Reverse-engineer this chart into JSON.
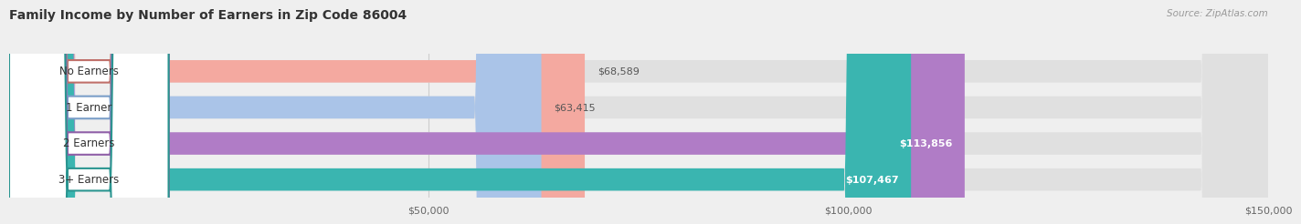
{
  "title": "Family Income by Number of Earners in Zip Code 86004",
  "source": "Source: ZipAtlas.com",
  "categories": [
    "No Earners",
    "1 Earner",
    "2 Earners",
    "3+ Earners"
  ],
  "values": [
    68589,
    63415,
    113856,
    107467
  ],
  "bar_colors": [
    "#f4a9a0",
    "#aac4e8",
    "#b07cc6",
    "#3ab5b0"
  ],
  "label_edge_colors": [
    "#c0706a",
    "#7a9ec8",
    "#9060a8",
    "#2a9590"
  ],
  "background_color": "#efefef",
  "bar_background": "#e0e0e0",
  "xlim": [
    0,
    150000
  ],
  "xticks": [
    50000,
    100000,
    150000
  ],
  "xtick_labels": [
    "$50,000",
    "$100,000",
    "$150,000"
  ],
  "label_fontsize": 8.5,
  "value_fontsize": 8.0,
  "title_fontsize": 10.0
}
